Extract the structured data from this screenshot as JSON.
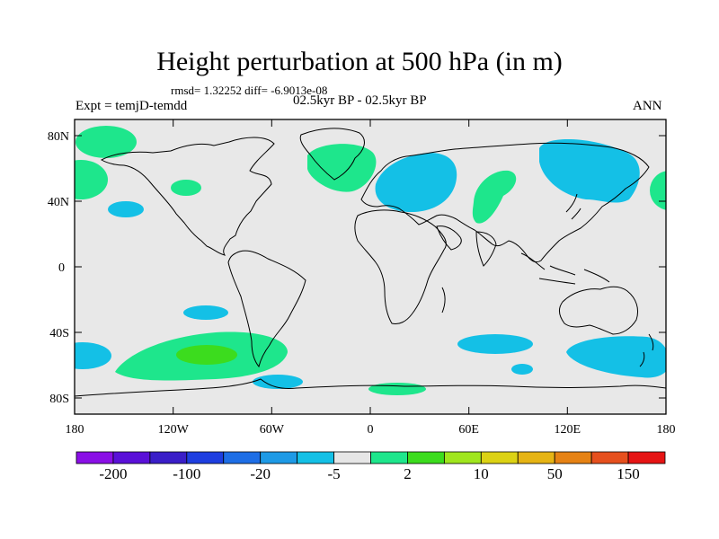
{
  "header": {
    "title": "Height perturbation at 500 hPa (in m)",
    "stats": "rmsd= 1.32252  diff= -6.9013e-08",
    "left_label": "Expt = temjD-temdd",
    "center_label": "02.5kyr BP - 02.5kyr BP",
    "right_label": "ANN"
  },
  "map": {
    "projection": "cylindrical equidistant",
    "lon_range": [
      -180,
      180
    ],
    "lat_range": [
      -90,
      90
    ],
    "lat_ticks": [
      "80N",
      "40N",
      "0",
      "40S",
      "80S"
    ],
    "lon_ticks": [
      "180",
      "120W",
      "60W",
      "0",
      "60E",
      "120E",
      "180"
    ],
    "background_color": "#e8e8e8",
    "coastline_color": "#000000"
  },
  "colorbar": {
    "colors": [
      "#8a0fe6",
      "#5a10d8",
      "#3a1ec8",
      "#1e3ee0",
      "#1e6ee6",
      "#1e9ae6",
      "#14c0e6",
      "#e6e6e6",
      "#1ee68c",
      "#3cdc1e",
      "#a0e61e",
      "#dcd214",
      "#e6b414",
      "#e68214",
      "#e6501e",
      "#e61414"
    ],
    "labels": [
      "-200",
      "-100",
      "-20",
      "-5",
      "2",
      "10",
      "50",
      "150"
    ]
  },
  "anomalies": [
    {
      "name": "north-pacific-east",
      "color": "#1ee68c"
    },
    {
      "name": "north-pacific-west",
      "color": "#1ee68c"
    },
    {
      "name": "pacific-40n",
      "color": "#1ee68c"
    },
    {
      "name": "atlantic-east",
      "color": "#1ee68c"
    },
    {
      "name": "europe",
      "color": "#14c0e6"
    },
    {
      "name": "central-asia",
      "color": "#1ee68c"
    },
    {
      "name": "east-asia",
      "color": "#14c0e6"
    },
    {
      "name": "north-america-west",
      "color": "#14c0e6"
    },
    {
      "name": "south-pacific",
      "color": "#1ee68c"
    },
    {
      "name": "south-pacific-core",
      "color": "#3cdc1e"
    },
    {
      "name": "indian-ocean-south",
      "color": "#14c0e6"
    },
    {
      "name": "australia-south",
      "color": "#14c0e6"
    }
  ]
}
